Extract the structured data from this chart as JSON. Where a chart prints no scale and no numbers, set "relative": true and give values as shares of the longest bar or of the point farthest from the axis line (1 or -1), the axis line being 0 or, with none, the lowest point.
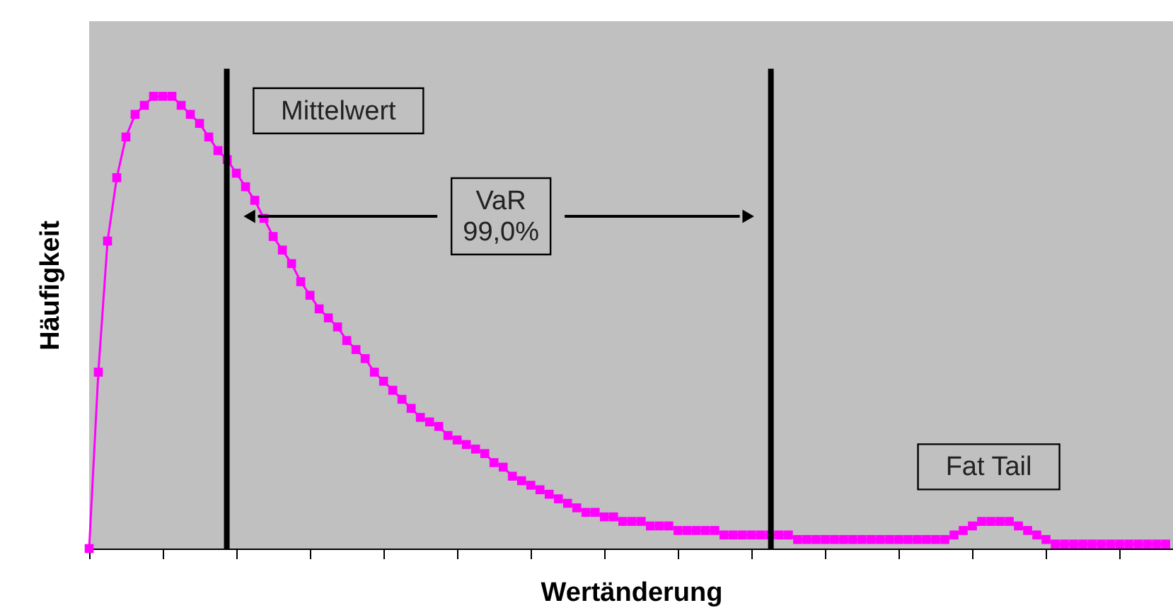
{
  "chart_data": {
    "type": "line",
    "relative": true,
    "xlabel": "Wertänderung",
    "ylabel": "Häufigkeit",
    "categories": [
      null,
      null,
      null,
      null,
      null,
      null,
      null,
      null,
      null,
      null,
      null,
      null,
      null,
      null,
      null,
      null,
      null,
      null,
      null,
      null,
      null,
      null,
      null,
      null,
      null,
      null,
      null,
      null,
      null,
      null,
      null,
      null,
      null,
      null,
      null,
      null,
      null,
      null,
      null,
      null,
      null,
      null,
      null,
      null,
      null,
      null,
      null,
      null,
      null,
      null,
      null,
      null,
      null,
      null,
      null,
      null,
      null,
      null,
      null,
      null,
      null,
      null,
      null,
      null,
      null,
      null,
      null,
      null,
      null,
      null,
      null,
      null,
      null,
      null,
      null,
      null,
      null,
      null,
      null,
      null,
      null,
      null,
      null,
      null,
      null,
      null,
      null,
      null,
      null,
      null,
      null,
      null,
      null,
      null,
      null,
      null,
      null,
      null,
      null,
      null,
      null,
      null,
      null,
      null,
      null,
      null,
      null,
      null,
      null,
      null,
      null,
      null,
      null,
      null,
      null,
      null,
      null,
      null
    ],
    "series": [
      {
        "color": "#ff00ff",
        "values": [
          0,
          0.39,
          0.68,
          0.82,
          0.91,
          0.96,
          0.98,
          1,
          1,
          1,
          0.98,
          0.96,
          0.94,
          0.91,
          0.88,
          0.86,
          0.83,
          0.8,
          0.77,
          0.73,
          0.69,
          0.66,
          0.63,
          0.59,
          0.56,
          0.53,
          0.51,
          0.49,
          0.46,
          0.44,
          0.42,
          0.39,
          0.37,
          0.35,
          0.33,
          0.31,
          0.29,
          0.28,
          0.27,
          0.25,
          0.24,
          0.23,
          0.22,
          0.21,
          0.19,
          0.18,
          0.16,
          0.15,
          0.14,
          0.13,
          0.12,
          0.11,
          0.1,
          0.09,
          0.08,
          0.08,
          0.07,
          0.07,
          0.06,
          0.06,
          0.06,
          0.05,
          0.05,
          0.05,
          0.04,
          0.04,
          0.04,
          0.04,
          0.04,
          0.03,
          0.03,
          0.03,
          0.03,
          0.03,
          0.03,
          0.03,
          0.03,
          0.02,
          0.02,
          0.02,
          0.02,
          0.02,
          0.02,
          0.02,
          0.02,
          0.02,
          0.02,
          0.02,
          0.02,
          0.02,
          0.02,
          0.02,
          0.02,
          0.02,
          0.03,
          0.04,
          0.05,
          0.06,
          0.06,
          0.06,
          0.06,
          0.05,
          0.04,
          0.03,
          0.02,
          0.01,
          0.01,
          0.01,
          0.01,
          0.01,
          0.01,
          0.01,
          0.01,
          0.01,
          0.01,
          0.01,
          0.01,
          0.01
        ]
      }
    ],
    "annotations": [
      "Mittelwert",
      "VaR\n99,0%",
      "Fat Tail"
    ],
    "marker": "square",
    "line_style": "solid"
  }
}
